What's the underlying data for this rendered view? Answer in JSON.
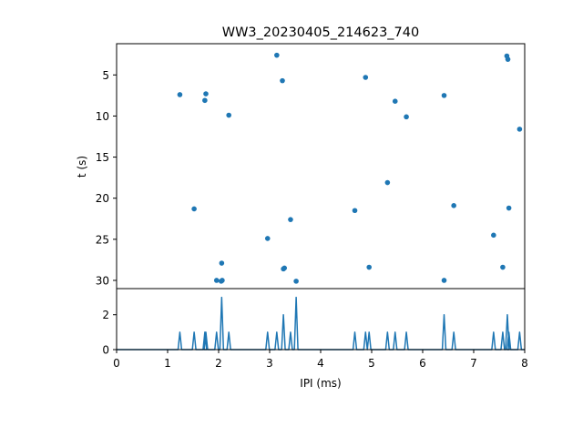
{
  "chart_data": [
    {
      "type": "scatter",
      "title": "WW3_20230405_214623_740",
      "xlabel": "",
      "ylabel": "t (s)",
      "xlim": [
        0,
        8
      ],
      "ylim": [
        31,
        1.2
      ],
      "y_inverted": true,
      "yticks": [
        5,
        10,
        15,
        20,
        25,
        30
      ],
      "grid": false,
      "color": "#1f77b4",
      "points": [
        {
          "x": 1.24,
          "y": 7.4
        },
        {
          "x": 1.73,
          "y": 8.1
        },
        {
          "x": 1.75,
          "y": 7.3
        },
        {
          "x": 2.2,
          "y": 9.9
        },
        {
          "x": 1.52,
          "y": 21.3
        },
        {
          "x": 3.14,
          "y": 2.6
        },
        {
          "x": 3.25,
          "y": 5.7
        },
        {
          "x": 3.41,
          "y": 22.6
        },
        {
          "x": 2.96,
          "y": 24.9
        },
        {
          "x": 2.06,
          "y": 27.9
        },
        {
          "x": 3.27,
          "y": 28.6
        },
        {
          "x": 3.29,
          "y": 28.5
        },
        {
          "x": 1.96,
          "y": 30.0
        },
        {
          "x": 2.05,
          "y": 30.1
        },
        {
          "x": 2.07,
          "y": 30.0
        },
        {
          "x": 3.52,
          "y": 30.1
        },
        {
          "x": 4.88,
          "y": 5.3
        },
        {
          "x": 5.46,
          "y": 8.2
        },
        {
          "x": 5.68,
          "y": 10.1
        },
        {
          "x": 5.31,
          "y": 18.1
        },
        {
          "x": 4.67,
          "y": 21.5
        },
        {
          "x": 4.95,
          "y": 28.4
        },
        {
          "x": 6.42,
          "y": 7.5
        },
        {
          "x": 6.61,
          "y": 20.9
        },
        {
          "x": 6.42,
          "y": 30.0
        },
        {
          "x": 7.65,
          "y": 2.7
        },
        {
          "x": 7.67,
          "y": 3.1
        },
        {
          "x": 7.9,
          "y": 11.6
        },
        {
          "x": 7.69,
          "y": 21.2
        },
        {
          "x": 7.39,
          "y": 24.5
        },
        {
          "x": 7.57,
          "y": 28.4
        }
      ]
    },
    {
      "type": "line",
      "title": "",
      "xlabel": "IPI (ms)",
      "ylabel": "",
      "xlim": [
        0,
        8
      ],
      "ylim": [
        0,
        3.5
      ],
      "xticks": [
        0,
        1,
        2,
        3,
        4,
        5,
        6,
        7,
        8
      ],
      "yticks": [
        0,
        2
      ],
      "grid": false,
      "color": "#1f77b4",
      "peaks": [
        {
          "x": 1.24,
          "y": 1
        },
        {
          "x": 1.52,
          "y": 1
        },
        {
          "x": 1.73,
          "y": 1
        },
        {
          "x": 1.75,
          "y": 1
        },
        {
          "x": 1.96,
          "y": 1
        },
        {
          "x": 2.06,
          "y": 3
        },
        {
          "x": 2.2,
          "y": 1
        },
        {
          "x": 2.96,
          "y": 1
        },
        {
          "x": 3.14,
          "y": 1
        },
        {
          "x": 3.27,
          "y": 2
        },
        {
          "x": 3.41,
          "y": 1
        },
        {
          "x": 3.52,
          "y": 3
        },
        {
          "x": 4.67,
          "y": 1
        },
        {
          "x": 4.88,
          "y": 1
        },
        {
          "x": 4.95,
          "y": 1
        },
        {
          "x": 5.31,
          "y": 1
        },
        {
          "x": 5.46,
          "y": 1
        },
        {
          "x": 5.68,
          "y": 1
        },
        {
          "x": 6.42,
          "y": 2
        },
        {
          "x": 6.61,
          "y": 1
        },
        {
          "x": 7.39,
          "y": 1
        },
        {
          "x": 7.57,
          "y": 1
        },
        {
          "x": 7.66,
          "y": 2
        },
        {
          "x": 7.69,
          "y": 1
        },
        {
          "x": 7.9,
          "y": 1
        }
      ]
    }
  ]
}
